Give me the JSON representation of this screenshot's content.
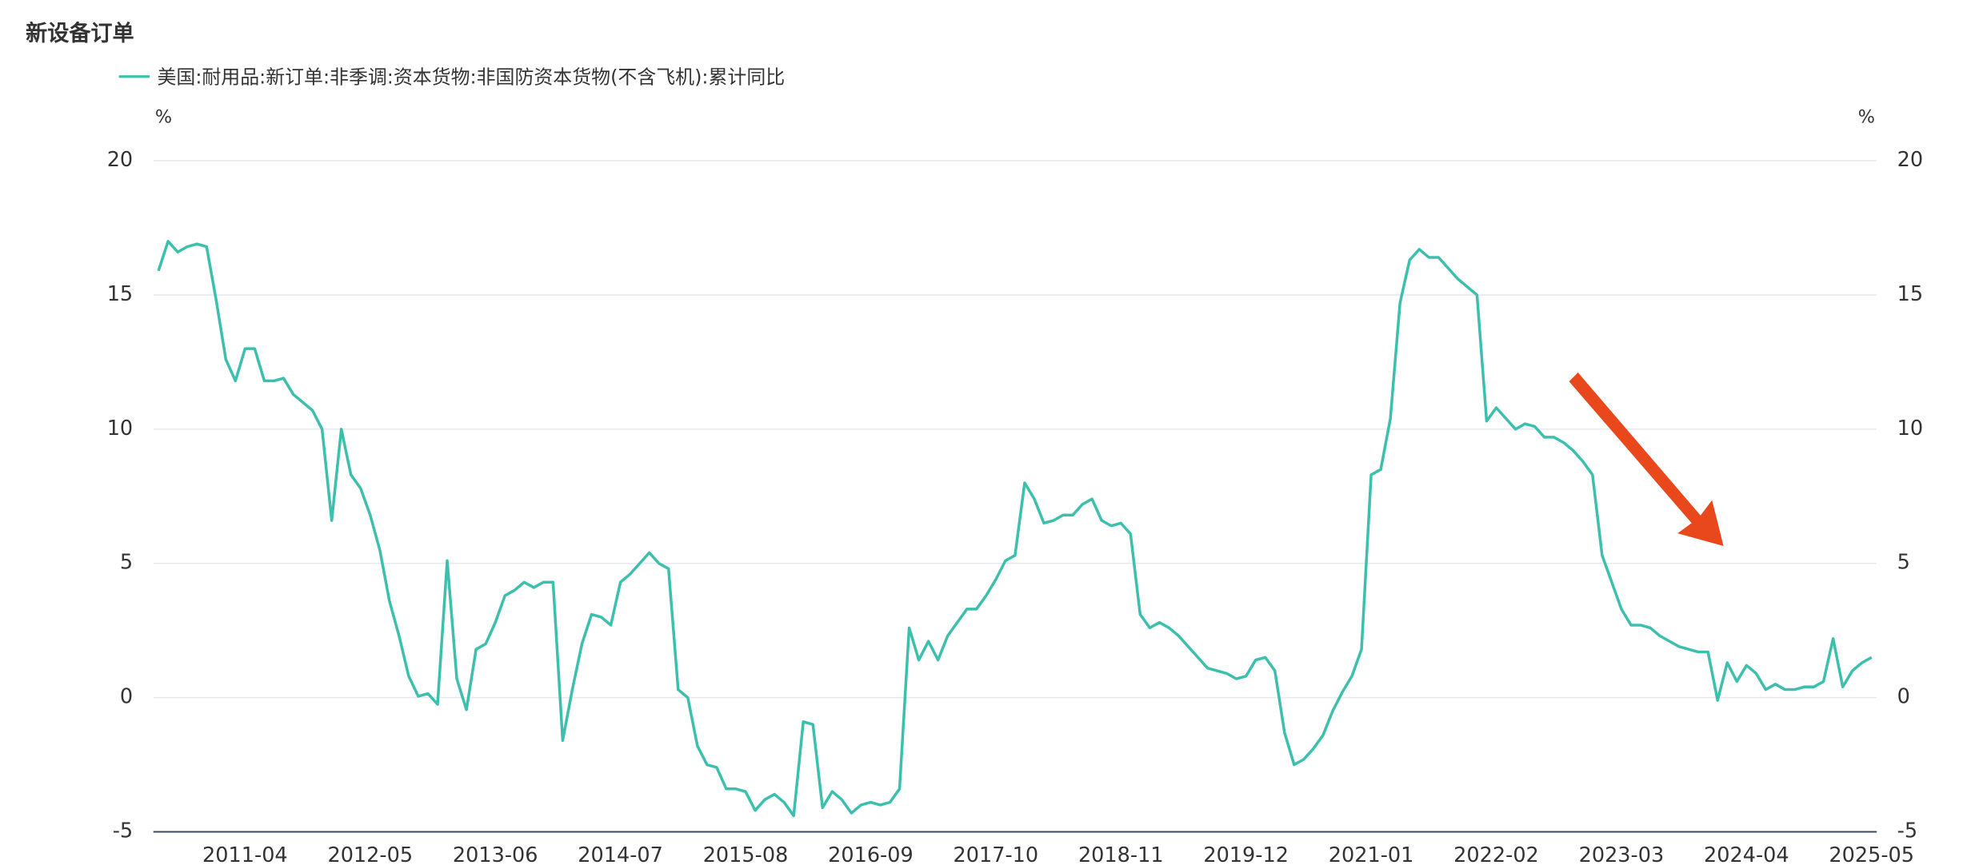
{
  "chart_data": {
    "type": "line",
    "title": "新设备订单",
    "y_unit": "%",
    "y2_unit": "%",
    "categories": [
      null,
      null,
      null,
      null,
      null,
      null,
      null,
      null,
      null,
      "2011-04",
      null,
      null,
      null,
      null,
      null,
      null,
      null,
      null,
      null,
      null,
      null,
      null,
      "2012-05",
      null,
      null,
      null,
      null,
      null,
      null,
      null,
      null,
      null,
      null,
      null,
      null,
      "2013-06",
      null,
      null,
      null,
      null,
      null,
      null,
      null,
      null,
      null,
      null,
      null,
      null,
      "2014-07",
      null,
      null,
      null,
      null,
      null,
      null,
      null,
      null,
      null,
      null,
      null,
      null,
      "2015-08",
      null,
      null,
      null,
      null,
      null,
      null,
      null,
      null,
      null,
      null,
      null,
      null,
      "2016-09",
      null,
      null,
      null,
      null,
      null,
      null,
      null,
      null,
      null,
      null,
      null,
      null,
      "2017-10",
      null,
      null,
      null,
      null,
      null,
      null,
      null,
      null,
      null,
      null,
      null,
      null,
      "2018-11",
      null,
      null,
      null,
      null,
      null,
      null,
      null,
      null,
      null,
      null,
      null,
      null,
      "2019-12",
      null,
      null,
      null,
      null,
      null,
      null,
      null,
      null,
      null,
      null,
      null,
      null,
      "2021-01",
      null,
      null,
      null,
      null,
      null,
      null,
      null,
      null,
      null,
      null,
      null,
      null,
      "2022-02",
      null,
      null,
      null,
      null,
      null,
      null,
      null,
      null,
      null,
      null,
      null,
      null,
      "2023-03",
      null,
      null,
      null,
      null,
      null,
      null,
      null,
      null,
      null,
      null,
      null,
      null,
      "2024-04",
      null,
      null,
      null,
      null,
      null,
      null,
      null,
      null,
      null,
      null,
      null,
      null,
      "2025-05"
    ],
    "series": [
      {
        "name": "美国:耐用品:新订单:非季调:资本货物:非国防资本货物(不含飞机):累计同比",
        "color": "#3dbfad",
        "values": [
          15.9,
          17.0,
          16.6,
          16.8,
          16.9,
          16.8,
          14.8,
          12.6,
          11.8,
          13.0,
          13.0,
          11.8,
          11.8,
          11.9,
          11.3,
          11.0,
          10.7,
          10.0,
          6.6,
          10.0,
          8.3,
          7.8,
          6.8,
          5.5,
          3.6,
          2.3,
          0.8,
          0.05,
          0.15,
          -0.25,
          5.1,
          0.7,
          -0.45,
          1.8,
          2.0,
          2.8,
          3.8,
          4.0,
          4.3,
          4.1,
          4.3,
          4.3,
          -1.6,
          0.3,
          2.0,
          3.1,
          3.0,
          2.7,
          4.3,
          4.6,
          5.0,
          5.4,
          5.0,
          4.8,
          0.3,
          0.0,
          -1.8,
          -2.5,
          -2.6,
          -3.4,
          -3.4,
          -3.5,
          -4.2,
          -3.8,
          -3.6,
          -3.9,
          -4.4,
          -0.9,
          -1.0,
          -4.1,
          -3.5,
          -3.8,
          -4.3,
          -4.0,
          -3.9,
          -4.0,
          -3.9,
          -3.4,
          2.6,
          1.4,
          2.1,
          1.4,
          2.3,
          2.8,
          3.3,
          3.3,
          3.8,
          4.4,
          5.1,
          5.3,
          8.0,
          7.4,
          6.5,
          6.6,
          6.8,
          6.8,
          7.2,
          7.4,
          6.6,
          6.4,
          6.5,
          6.1,
          3.1,
          2.6,
          2.8,
          2.6,
          2.3,
          1.9,
          1.5,
          1.1,
          1.0,
          0.9,
          0.7,
          0.8,
          1.4,
          1.5,
          1.0,
          -1.3,
          -2.5,
          -2.3,
          -1.9,
          -1.4,
          -0.5,
          0.2,
          0.8,
          1.8,
          8.3,
          8.5,
          10.4,
          14.7,
          16.3,
          16.7,
          16.4,
          16.4,
          16.0,
          15.6,
          15.3,
          15.0,
          10.3,
          10.8,
          10.4,
          10.0,
          10.2,
          10.1,
          9.7,
          9.7,
          9.5,
          9.2,
          8.8,
          8.3,
          5.3,
          4.3,
          3.3,
          2.7,
          2.7,
          2.6,
          2.3,
          2.1,
          1.9,
          1.8,
          1.7,
          1.7,
          -0.1,
          1.3,
          0.6,
          1.2,
          0.9,
          0.3,
          0.5,
          0.3,
          0.3,
          0.4,
          0.4,
          0.6,
          2.2,
          0.4,
          1.0,
          1.3,
          1.5
        ]
      }
    ],
    "ylim": [
      -5,
      20
    ],
    "yticks": [
      -5,
      0,
      5,
      10,
      15,
      20
    ],
    "y2lim": [
      -5,
      20
    ],
    "y2ticks": [
      -5,
      0,
      5,
      10,
      15,
      20
    ],
    "grid": true
  }
}
